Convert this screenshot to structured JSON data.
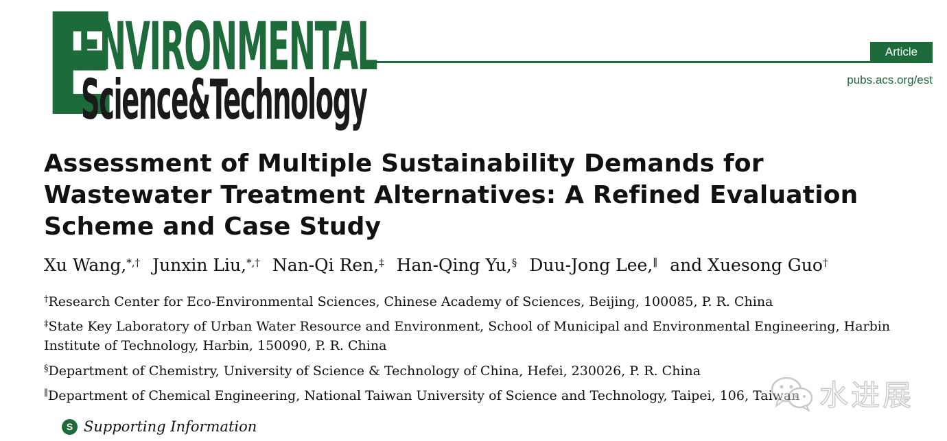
{
  "journal": {
    "logo_word1": "ENVIRONMENTAL",
    "logo_word2": "Science&Technology",
    "article_type": "Article",
    "url": "pubs.acs.org/est"
  },
  "title": "Assessment of Multiple Sustainability Demands for Wastewater Treatment Alternatives: A Refined Evaluation Scheme and Case Study",
  "authors": [
    {
      "name": "Xu Wang,",
      "marks": "*,†"
    },
    {
      "name": "Junxin Liu,",
      "marks": "*,†"
    },
    {
      "name": "Nan-Qi Ren,",
      "marks": "‡"
    },
    {
      "name": "Han-Qing Yu,",
      "marks": "§"
    },
    {
      "name": "Duu-Jong Lee,",
      "marks": "∥"
    },
    {
      "name": "and Xuesong Guo",
      "marks": "†"
    }
  ],
  "affiliations": [
    {
      "mark": "†",
      "text": "Research Center for Eco-Environmental Sciences, Chinese Academy of Sciences, Beijing, 100085, P. R. China"
    },
    {
      "mark": "‡",
      "text": "State Key Laboratory of Urban Water Resource and Environment, School of Municipal and Environmental Engineering, Harbin Institute of Technology, Harbin, 150090, P. R. China"
    },
    {
      "mark": "§",
      "text": "Department of Chemistry, University of Science & Technology of China, Hefei, 230026, P. R. China"
    },
    {
      "mark": "∥",
      "text": "Department of Chemical Engineering, National Taiwan University of Science and Technology, Taipei, 106, Taiwan"
    }
  ],
  "supporting_info": {
    "icon_letter": "S",
    "label": "Supporting Information"
  },
  "watermark": {
    "text": "水进展",
    "icon": "wechat-icon"
  },
  "colors": {
    "brand_green": "#1d6b3a"
  }
}
